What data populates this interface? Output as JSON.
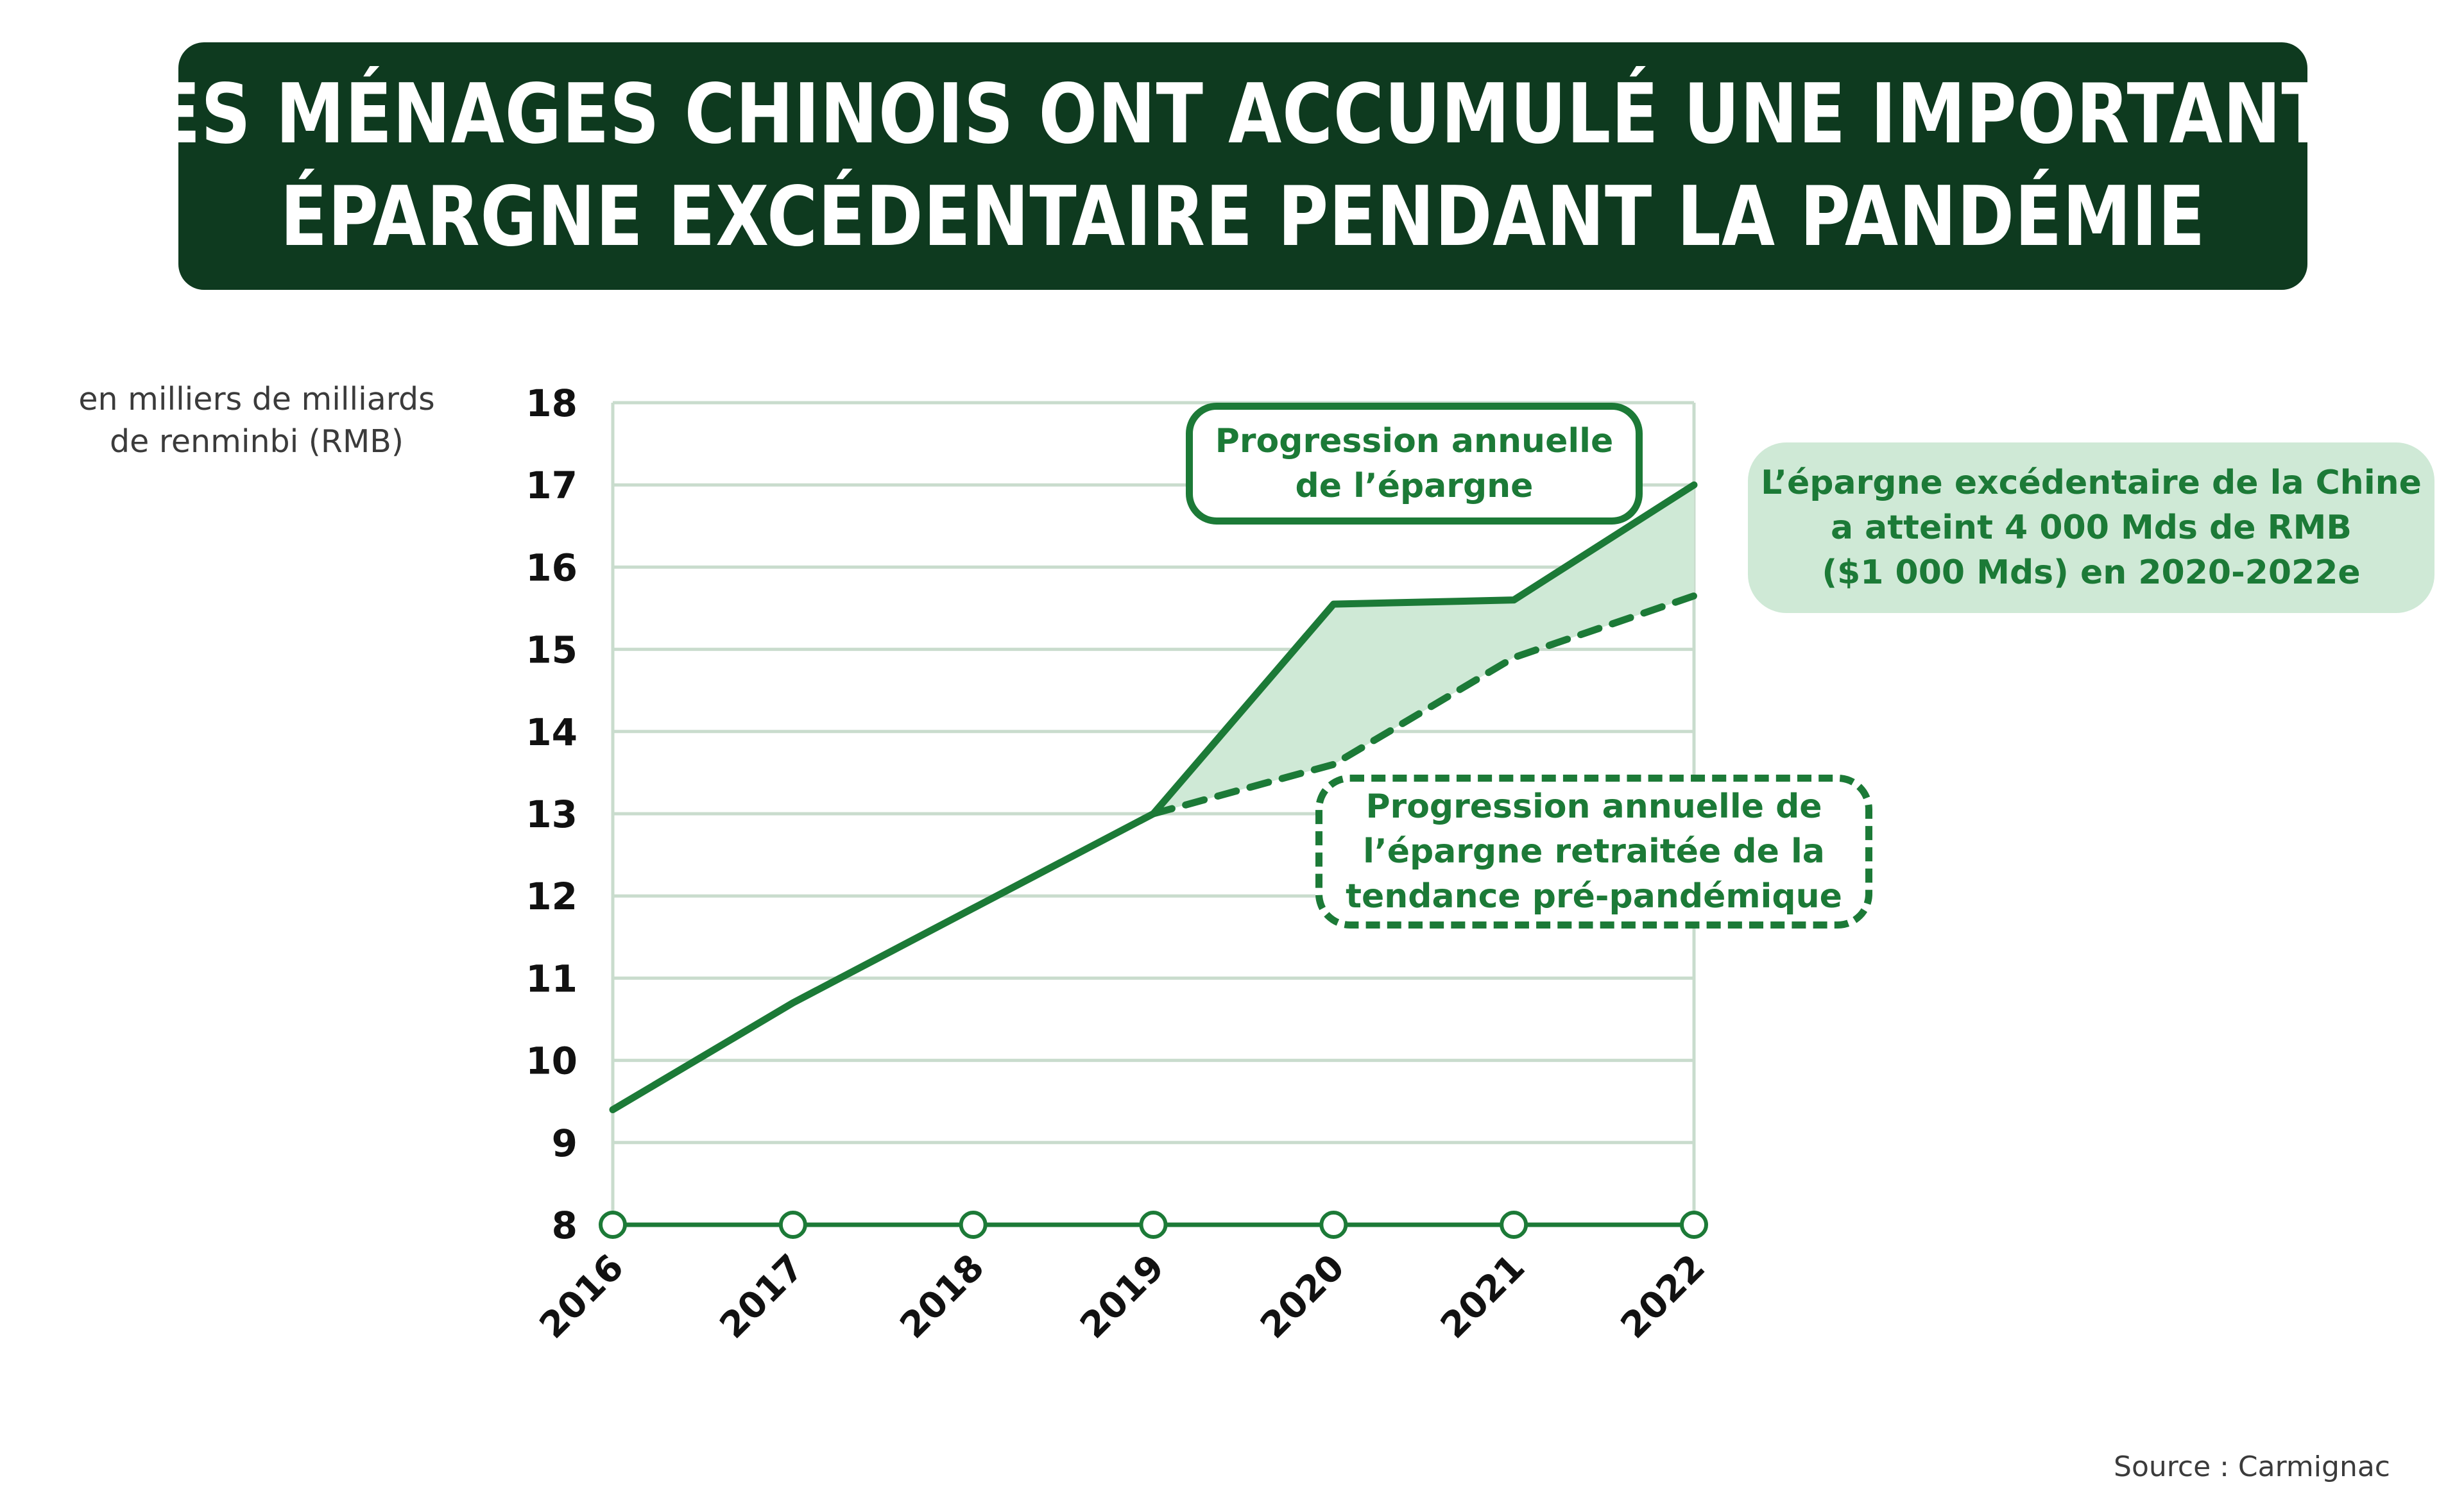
{
  "title": {
    "line1": "LES MÉNAGES CHINOIS ONT ACCUMULÉ UNE IMPORTANTE",
    "line2": "ÉPARGNE EXCÉDENTAIRE PENDANT LA PANDÉMIE"
  },
  "unit_label": {
    "line1": "en milliers de milliards",
    "line2": "de renminbi (RMB)"
  },
  "callouts": {
    "actual": {
      "line1": "Progression annuelle",
      "line2": "de l’épargne"
    },
    "trend": {
      "line1": "Progression annuelle de",
      "line2": "l’épargne  retraitée de la",
      "line3": "tendance pré-pandémique"
    },
    "excess": {
      "line1": "L’épargne excédentaire de la Chine",
      "line2": "a atteint 4 000 Mds de RMB",
      "line3": "($1 000 Mds) en 2020-2022e"
    }
  },
  "source": "Source : Carmignac",
  "colors": {
    "banner": "#0e3a1f",
    "line": "#1c7a37",
    "fill_area": "#cfe9d6",
    "grid": "#c9dccd"
  },
  "chart_data": {
    "type": "line",
    "x": [
      "2016",
      "2017",
      "2018",
      "2019",
      "2020",
      "2021",
      "2022"
    ],
    "yticks": [
      "8",
      "9",
      "10",
      "11",
      "12",
      "13",
      "14",
      "15",
      "16",
      "17",
      "18"
    ],
    "ylim": [
      8,
      18
    ],
    "grid": true,
    "series": [
      {
        "name": "Progression annuelle de l’épargne",
        "style": "solid",
        "values": [
          9.4,
          10.7,
          11.85,
          13.0,
          15.55,
          15.6,
          17.0
        ]
      },
      {
        "name": "Progression annuelle de l’épargne retraitée de la tendance pré-pandémique",
        "style": "dashed",
        "values": [
          null,
          null,
          null,
          13.0,
          13.6,
          14.9,
          15.65
        ]
      }
    ],
    "shaded_between": [
      "Progression annuelle de l’épargne",
      "Progression annuelle de l’épargne retraitée de la tendance pré-pandémique"
    ]
  }
}
